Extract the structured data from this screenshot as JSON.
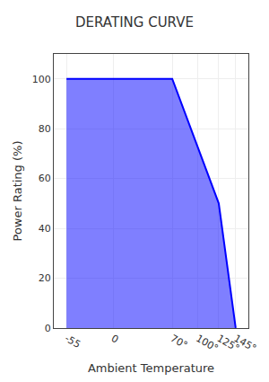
{
  "chart_data": {
    "type": "area",
    "title": "DERATING CURVE",
    "x_label": "Ambient Temperature",
    "y_label": "Power Rating (%)",
    "x": [
      -55,
      70,
      125,
      145
    ],
    "values": [
      100,
      100,
      50,
      0
    ],
    "color": "blue",
    "xlim": [
      -70,
      160
    ],
    "xticks": [
      -55,
      0,
      {
        "value": 70,
        "label": "70°"
      },
      {
        "value": 100,
        "label": "100°"
      },
      {
        "value": 125,
        "label": "125°"
      },
      {
        "value": 145,
        "label": "145°"
      }
    ],
    "ylim": [
      0,
      110
    ],
    "yticks": [
      0,
      20,
      40,
      60,
      80,
      100
    ],
    "grid": true
  }
}
